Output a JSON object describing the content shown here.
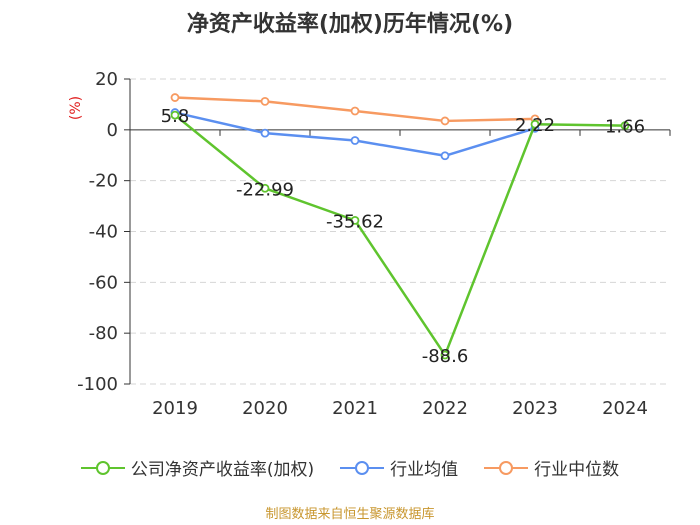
{
  "chart_data": {
    "type": "line",
    "title": "净资产收益率(加权)历年情况(%)",
    "ylabel": "(%)",
    "ylim": [
      -100,
      20
    ],
    "yticks": [
      20,
      0,
      -20,
      -40,
      -60,
      -80,
      -100
    ],
    "categories": [
      "2019",
      "2020",
      "2021",
      "2022",
      "2023",
      "2024"
    ],
    "grid": true,
    "legend_position": "bottom",
    "series": [
      {
        "name": "公司净资产收益率(加权)",
        "color": "#5fc42e",
        "values": [
          5.8,
          -22.99,
          -35.62,
          -88.6,
          2.22,
          1.66
        ],
        "labels": [
          "5.8",
          "-22.99",
          "-35.62",
          "-88.6",
          "2.22",
          "1.66"
        ]
      },
      {
        "name": "行业均值",
        "color": "#5b8ff0",
        "values": [
          6.8,
          -1.3,
          -4.2,
          -10.2,
          0.6,
          null
        ]
      },
      {
        "name": "行业中位数",
        "color": "#f79a61",
        "values": [
          12.7,
          11.2,
          7.4,
          3.5,
          4.3,
          null
        ]
      }
    ]
  },
  "source": "制图数据来自恒生聚源数据库"
}
